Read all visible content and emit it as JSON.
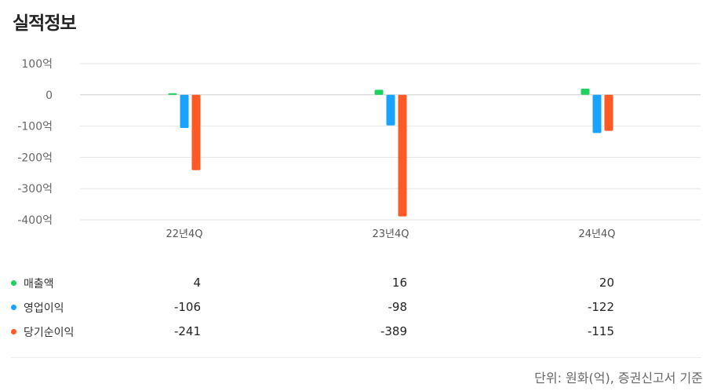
{
  "title": "실적정보",
  "colors": {
    "revenue": "#1fd15f",
    "operating": "#19a3ff",
    "net": "#ff5a25",
    "grid": "#e6e6e6",
    "zero": "#cfcfcf"
  },
  "chart_data": {
    "type": "bar",
    "categories": [
      "22년4Q",
      "23년4Q",
      "24년4Q"
    ],
    "series": [
      {
        "name": "매출액",
        "values": [
          4,
          16,
          20
        ]
      },
      {
        "name": "영업이익",
        "values": [
          -106,
          -98,
          -122
        ]
      },
      {
        "name": "당기순이익",
        "values": [
          -241,
          -389,
          -115
        ]
      }
    ],
    "yticks": [
      "100억",
      "0",
      "-100억",
      "-200억",
      "-300억",
      "-400억"
    ],
    "ylim": [
      -400,
      100
    ],
    "grid": true
  },
  "table": {
    "rows": [
      {
        "label": "매출액",
        "values": [
          "4",
          "16",
          "20"
        ]
      },
      {
        "label": "영업이익",
        "values": [
          "-106",
          "-98",
          "-122"
        ]
      },
      {
        "label": "당기순이익",
        "values": [
          "-241",
          "-389",
          "-115"
        ]
      }
    ]
  },
  "footnote": "단위: 원화(억), 증권신고서 기준"
}
